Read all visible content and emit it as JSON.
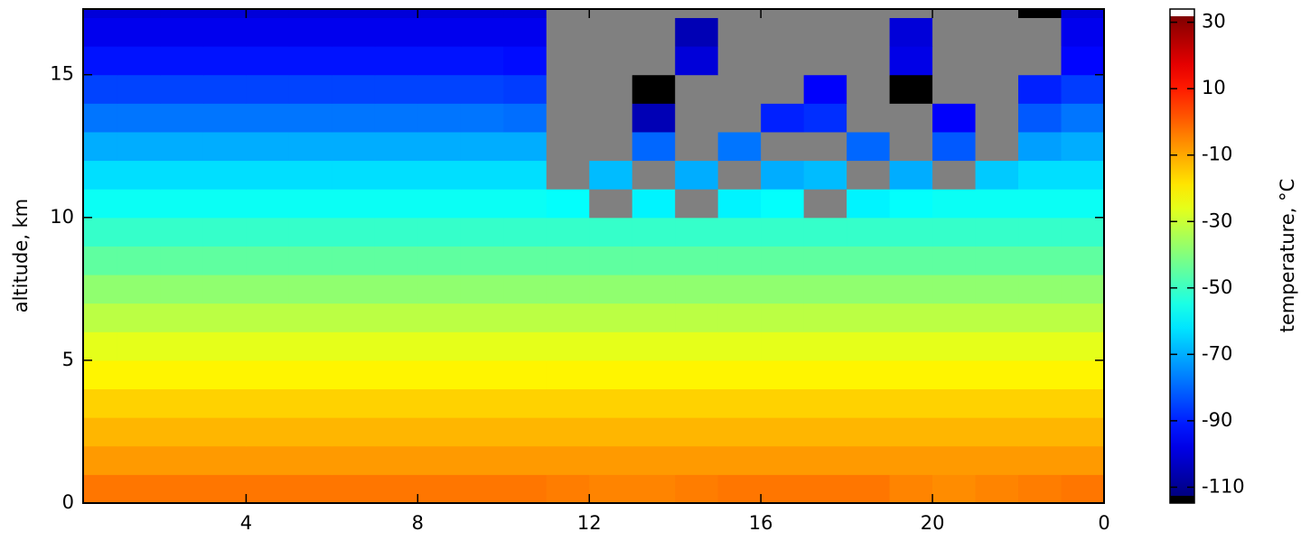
{
  "chart_data": {
    "type": "heatmap",
    "ylabel": "altitude, km",
    "colorbar_label": "temperature, °C",
    "x": [
      0.5,
      1.5,
      2.5,
      3.5,
      4.5,
      5.5,
      6.5,
      7.5,
      8.5,
      9.5,
      10.5,
      11.5,
      12.5,
      13.5,
      14.5,
      15.5,
      16.5,
      17.5,
      18.5,
      19.5,
      20.5,
      21.5,
      22.5,
      23.5
    ],
    "y": [
      0.5,
      1.5,
      2.5,
      3.5,
      4.5,
      5.5,
      6.5,
      7.5,
      8.5,
      9.5,
      10.5,
      11.5,
      12.5,
      13.5,
      14.5,
      15.5,
      16.5,
      17.5
    ],
    "z": [
      [
        -3,
        -3,
        -3,
        -3,
        -3,
        -3,
        -3,
        -3,
        -3,
        -3,
        -3,
        -4,
        -5,
        -5,
        -4,
        -3,
        -3,
        -3,
        -3,
        -5,
        -6,
        -5,
        -4,
        -3
      ],
      [
        -8,
        -8,
        -8,
        -8,
        -8,
        -8,
        -8,
        -8,
        -8,
        -8,
        -8,
        -8,
        -8,
        -8,
        -8,
        -8,
        -8,
        -8,
        -8,
        -8,
        -8,
        -8,
        -8,
        -8
      ],
      [
        -12,
        -12,
        -12,
        -12,
        -12,
        -12,
        -12,
        -12,
        -12,
        -12,
        -12,
        -12,
        -12,
        -12,
        -12,
        -12,
        -12,
        -12,
        -12,
        -12,
        -12,
        -12,
        -12,
        -12
      ],
      [
        -16,
        -16,
        -16,
        -16,
        -16,
        -16,
        -16,
        -16,
        -16,
        -16,
        -16,
        -16,
        -16,
        -16,
        -16,
        -16,
        -16,
        -16,
        -16,
        -16,
        -16,
        -16,
        -16,
        -16
      ],
      [
        -21,
        -21,
        -21,
        -21,
        -21,
        -21,
        -21,
        -21,
        -21,
        -21,
        -21,
        -21,
        -21,
        -21,
        -21,
        -21,
        -21,
        -21,
        -21,
        -21,
        -21,
        -21,
        -21,
        -21
      ],
      [
        -26,
        -26,
        -26,
        -26,
        -26,
        -26,
        -26,
        -26,
        -26,
        -26,
        -26,
        -26,
        -26,
        -26,
        -26,
        -26,
        -26,
        -26,
        -26,
        -26,
        -26,
        -26,
        -26,
        -26
      ],
      [
        -32,
        -32,
        -32,
        -32,
        -32,
        -32,
        -32,
        -32,
        -32,
        -32,
        -32,
        -32,
        -32,
        -32,
        -32,
        -32,
        -32,
        -32,
        -32,
        -32,
        -32,
        -32,
        -32,
        -32
      ],
      [
        -38,
        -38,
        -38,
        -38,
        -38,
        -38,
        -38,
        -38,
        -38,
        -38,
        -38,
        -38,
        -38,
        -38,
        -38,
        -38,
        -38,
        -38,
        -38,
        -38,
        -38,
        -38,
        -38,
        -38
      ],
      [
        -45,
        -45,
        -45,
        -45,
        -45,
        -45,
        -45,
        -45,
        -45,
        -45,
        -45,
        -45,
        -45,
        -45,
        -45,
        -45,
        -45,
        -45,
        -45,
        -45,
        -45,
        -45,
        -45,
        -45
      ],
      [
        -51,
        -51,
        -51,
        -51,
        -51,
        -51,
        -51,
        -51,
        -51,
        -51,
        -51,
        -51,
        -51,
        -51,
        -51,
        -51,
        -51,
        -51,
        -51,
        -51,
        -51,
        -51,
        -51,
        -51
      ],
      [
        -57,
        -57,
        -57,
        -57,
        -57,
        -57,
        -57,
        -57,
        -57,
        -57,
        -57,
        -58,
        null,
        -60,
        null,
        -60,
        -58,
        null,
        -60,
        -58,
        -57,
        -57,
        -57,
        -57
      ],
      [
        -63,
        -63,
        -63,
        -63,
        -63,
        -63,
        -63,
        -63,
        -63,
        -63,
        -63,
        null,
        -68,
        null,
        -70,
        null,
        -70,
        -68,
        null,
        -70,
        null,
        -66,
        -63,
        -63
      ],
      [
        -70,
        -70,
        -70,
        -70,
        -70,
        -70,
        -70,
        -70,
        -70,
        -70,
        -70,
        null,
        null,
        -80,
        null,
        -78,
        null,
        null,
        -80,
        null,
        -82,
        null,
        -72,
        -70
      ],
      [
        -78,
        -78,
        -78,
        -78,
        -78,
        -78,
        -78,
        -78,
        -78,
        -78,
        -79,
        null,
        null,
        -105,
        null,
        null,
        -90,
        -88,
        null,
        null,
        -95,
        null,
        -82,
        -78
      ],
      [
        -85,
        -85,
        -85,
        -85,
        -85,
        -85,
        -85,
        -85,
        -85,
        -85,
        -86,
        null,
        null,
        -115,
        null,
        null,
        null,
        -95,
        null,
        -115,
        null,
        null,
        -90,
        -86
      ],
      [
        -92,
        -92,
        -92,
        -92,
        -92,
        -92,
        -92,
        -92,
        -92,
        -92,
        -93,
        null,
        null,
        null,
        -100,
        null,
        null,
        null,
        null,
        -98,
        null,
        null,
        null,
        -94
      ],
      [
        -97,
        -97,
        -97,
        -97,
        -97,
        -97,
        -97,
        -97,
        -97,
        -97,
        -97,
        null,
        null,
        null,
        -105,
        null,
        null,
        null,
        null,
        -100,
        null,
        null,
        null,
        -97
      ],
      [
        -100,
        -100,
        -100,
        -100,
        -100,
        -100,
        -100,
        -100,
        -100,
        -100,
        -100,
        null,
        null,
        null,
        null,
        null,
        null,
        null,
        null,
        null,
        null,
        null,
        -115,
        -100
      ]
    ],
    "missing_color": "#808080",
    "over_color": "#ffffff",
    "under_color": "#000000",
    "colormap": "jet",
    "xlim": [
      0.2,
      24
    ],
    "xticks": [
      4,
      8,
      12,
      16,
      20,
      {
        "value": 24,
        "label": "0"
      }
    ],
    "ylim": [
      0,
      17.3
    ],
    "yticks": [
      0,
      5,
      10,
      15
    ],
    "clim": [
      -112.6,
      31.8
    ],
    "cticks": [
      30,
      10,
      -10,
      -30,
      -50,
      -70,
      -90,
      -110
    ]
  }
}
